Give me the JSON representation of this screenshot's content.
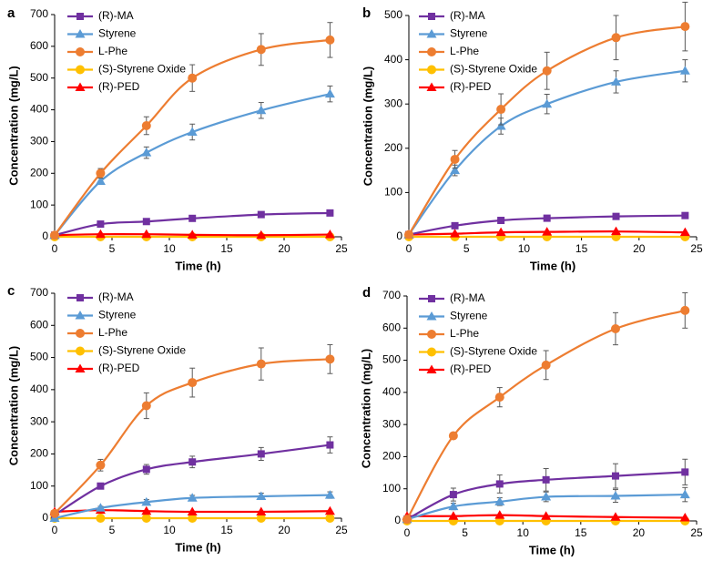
{
  "colors": {
    "R-MA": "#7030A0",
    "Styrene": "#5B9BD5",
    "L-Phe": "#ED7D31",
    "S-Styrene Oxide": "#FFC000",
    "R-PED": "#FF0000"
  },
  "chart_data": [
    {
      "panel_label": "a",
      "type": "line",
      "title": "",
      "xlabel": "Time (h)",
      "ylabel": "Concentration (mg/L)",
      "xlim": [
        0,
        25
      ],
      "ylim": [
        0,
        700
      ],
      "xticks": [
        "0",
        "5",
        "10",
        "15",
        "20",
        "25"
      ],
      "yticks": [
        "0",
        "100",
        "200",
        "300",
        "400",
        "500",
        "600",
        "700"
      ],
      "legend_position": "top-left",
      "x": [
        0,
        4,
        8,
        12,
        18,
        24
      ],
      "series": [
        {
          "name": "(R)-MA",
          "key": "R-MA",
          "marker": "square",
          "values": [
            5,
            40,
            48,
            58,
            70,
            75
          ],
          "errors": [
            0,
            0,
            0,
            0,
            0,
            0
          ]
        },
        {
          "name": "Styrene",
          "key": "Styrene",
          "marker": "triangle",
          "values": [
            5,
            175,
            265,
            330,
            398,
            450
          ],
          "errors": [
            0,
            10,
            18,
            25,
            25,
            25
          ]
        },
        {
          "name": "L-Phe",
          "key": "L-Phe",
          "marker": "circle",
          "values": [
            5,
            200,
            350,
            500,
            590,
            620
          ],
          "errors": [
            0,
            15,
            28,
            42,
            50,
            55
          ]
        },
        {
          "name": "(S)-Styrene Oxide",
          "key": "S-Styrene Oxide",
          "marker": "circle",
          "values": [
            0,
            0,
            0,
            0,
            0,
            0
          ],
          "errors": [
            0,
            0,
            0,
            0,
            0,
            0
          ]
        },
        {
          "name": "(R)-PED",
          "key": "R-PED",
          "marker": "triangle",
          "values": [
            5,
            8,
            8,
            6,
            5,
            7
          ],
          "errors": [
            0,
            0,
            0,
            0,
            0,
            0
          ]
        }
      ]
    },
    {
      "panel_label": "b",
      "type": "line",
      "title": "",
      "xlabel": "Time (h)",
      "ylabel": "Concentration (mg/L)",
      "xlim": [
        0,
        25
      ],
      "ylim": [
        0,
        500
      ],
      "xticks": [
        "0",
        "5",
        "10",
        "15",
        "20",
        "25"
      ],
      "yticks": [
        "0",
        "100",
        "200",
        "300",
        "400",
        "500"
      ],
      "legend_position": "top-left",
      "x": [
        0,
        4,
        8,
        12,
        18,
        24
      ],
      "series": [
        {
          "name": "(R)-MA",
          "key": "R-MA",
          "marker": "square",
          "values": [
            5,
            25,
            37,
            42,
            46,
            48
          ],
          "errors": [
            0,
            0,
            0,
            0,
            0,
            0
          ]
        },
        {
          "name": "Styrene",
          "key": "Styrene",
          "marker": "triangle",
          "values": [
            5,
            150,
            250,
            300,
            350,
            375
          ],
          "errors": [
            0,
            12,
            18,
            22,
            25,
            25
          ]
        },
        {
          "name": "L-Phe",
          "key": "L-Phe",
          "marker": "circle",
          "values": [
            5,
            175,
            288,
            375,
            450,
            475
          ],
          "errors": [
            0,
            20,
            35,
            42,
            50,
            55
          ]
        },
        {
          "name": "(S)-Styrene Oxide",
          "key": "S-Styrene Oxide",
          "marker": "circle",
          "values": [
            0,
            0,
            0,
            0,
            0,
            0
          ],
          "errors": [
            0,
            0,
            0,
            0,
            0,
            0
          ]
        },
        {
          "name": "(R)-PED",
          "key": "R-PED",
          "marker": "triangle",
          "values": [
            5,
            7,
            10,
            11,
            12,
            10
          ],
          "errors": [
            0,
            0,
            0,
            0,
            0,
            0
          ]
        }
      ]
    },
    {
      "panel_label": "c",
      "type": "line",
      "title": "",
      "xlabel": "Time (h)",
      "ylabel": "Concentration (mg/L)",
      "xlim": [
        0,
        25
      ],
      "ylim": [
        0,
        700
      ],
      "xticks": [
        "0",
        "5",
        "10",
        "15",
        "20",
        "25"
      ],
      "yticks": [
        "0",
        "100",
        "200",
        "300",
        "400",
        "500",
        "600",
        "700"
      ],
      "legend_position": "top-left",
      "x": [
        0,
        4,
        8,
        12,
        18,
        24
      ],
      "series": [
        {
          "name": "(R)-MA",
          "key": "R-MA",
          "marker": "square",
          "values": [
            10,
            100,
            152,
            175,
            200,
            228
          ],
          "errors": [
            0,
            8,
            15,
            18,
            20,
            25
          ]
        },
        {
          "name": "Styrene",
          "key": "Styrene",
          "marker": "triangle",
          "values": [
            0,
            32,
            50,
            63,
            68,
            72
          ],
          "errors": [
            0,
            5,
            8,
            8,
            10,
            10
          ]
        },
        {
          "name": "L-Phe",
          "key": "L-Phe",
          "marker": "circle",
          "values": [
            15,
            165,
            350,
            422,
            480,
            495
          ],
          "errors": [
            0,
            18,
            40,
            45,
            50,
            45
          ]
        },
        {
          "name": "(S)-Styrene Oxide",
          "key": "S-Styrene Oxide",
          "marker": "circle",
          "values": [
            0,
            0,
            0,
            0,
            0,
            0
          ],
          "errors": [
            0,
            0,
            0,
            0,
            0,
            0
          ]
        },
        {
          "name": "(R)-PED",
          "key": "R-PED",
          "marker": "triangle",
          "values": [
            20,
            25,
            22,
            20,
            20,
            22
          ],
          "errors": [
            0,
            0,
            0,
            0,
            0,
            0
          ]
        }
      ]
    },
    {
      "panel_label": "d",
      "type": "line",
      "title": "",
      "xlabel": "Time (h)",
      "ylabel": "Concentration (mg/L)",
      "xlim": [
        0,
        25
      ],
      "ylim": [
        0,
        700
      ],
      "xticks": [
        "0",
        "5",
        "10",
        "15",
        "20",
        "25"
      ],
      "yticks": [
        "0",
        "100",
        "200",
        "300",
        "400",
        "500",
        "600",
        "700"
      ],
      "legend_position": "top-left",
      "x": [
        0,
        4,
        8,
        12,
        18,
        24
      ],
      "series": [
        {
          "name": "(R)-MA",
          "key": "R-MA",
          "marker": "square",
          "values": [
            5,
            82,
            115,
            128,
            140,
            152
          ],
          "errors": [
            0,
            20,
            28,
            35,
            38,
            40
          ]
        },
        {
          "name": "Styrene",
          "key": "Styrene",
          "marker": "triangle",
          "values": [
            5,
            45,
            60,
            75,
            78,
            82
          ],
          "errors": [
            0,
            10,
            12,
            15,
            20,
            22
          ]
        },
        {
          "name": "L-Phe",
          "key": "L-Phe",
          "marker": "circle",
          "values": [
            5,
            265,
            385,
            485,
            598,
            655
          ],
          "errors": [
            0,
            10,
            30,
            45,
            50,
            55
          ]
        },
        {
          "name": "(S)-Styrene Oxide",
          "key": "S-Styrene Oxide",
          "marker": "circle",
          "values": [
            0,
            0,
            0,
            0,
            0,
            0
          ],
          "errors": [
            0,
            0,
            0,
            0,
            0,
            0
          ]
        },
        {
          "name": "(R)-PED",
          "key": "R-PED",
          "marker": "triangle",
          "values": [
            15,
            15,
            18,
            15,
            12,
            10
          ],
          "errors": [
            0,
            0,
            0,
            0,
            0,
            0
          ]
        }
      ]
    }
  ]
}
